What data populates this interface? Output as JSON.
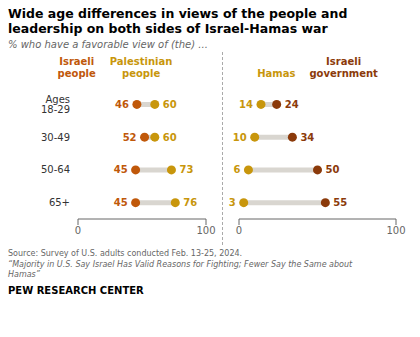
{
  "chart_data": [
    {
      "type": "dumbbell",
      "orientation": "horizontal",
      "title": "Wide age differences in views of the people and\nleadership on both sides of Israel-Hamas war",
      "subtitle": "% who have a favorable view of (the) ...",
      "categories": [
        "Ages 18-29",
        "30-49",
        "50-64",
        "65+"
      ],
      "series": [
        {
          "name": "Israeli\npeople",
          "color": "#C0580A",
          "values": [
            46,
            52,
            45,
            45
          ]
        },
        {
          "name": "Palestinian\npeople",
          "color": "#C8960C",
          "values": [
            60,
            60,
            73,
            76
          ]
        }
      ],
      "xlim": [
        0,
        100
      ],
      "xticks": [
        0,
        100
      ],
      "data_labels": true,
      "tick_labels": true,
      "annotations": [
        "Source: Survey of U.S. adults conducted Feb. 13-25, 2024.",
        "“Majority in U.S. Say Israel Has Valid Reasons for Fighting; Fewer Say the Same about\nHamas”",
        "PEW RESEARCH CENTER"
      ]
    },
    {
      "type": "dumbbell",
      "orientation": "horizontal",
      "categories": [
        "Ages 18-29",
        "30-49",
        "50-64",
        "65+"
      ],
      "series": [
        {
          "name": "Hamas",
          "color": "#C8960C",
          "values": [
            14,
            10,
            6,
            3
          ]
        },
        {
          "name": "Israeli\ngovernment",
          "color": "#8B3A0A",
          "values": [
            24,
            34,
            50,
            55
          ]
        }
      ],
      "xlim": [
        0,
        100
      ],
      "xticks": [
        0,
        100
      ],
      "data_labels": true,
      "tick_labels": "x"
    }
  ]
}
